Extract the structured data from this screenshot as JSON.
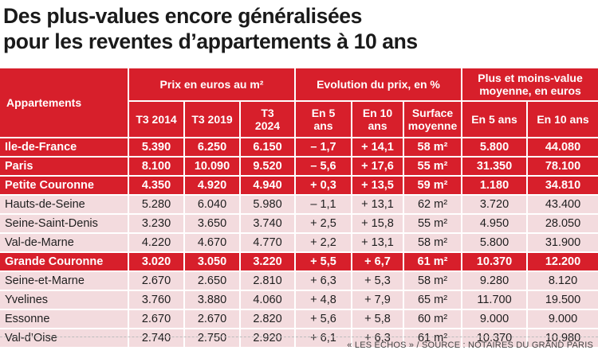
{
  "title": {
    "line1": "Des plus-values encore généralisées",
    "line2": "pour les reventes d’appartements à 10 ans"
  },
  "header": {
    "appartements": "Appartements",
    "group_prix": "Prix en euros au m²",
    "group_evolution": "Evolution du prix, en %",
    "group_plusvalue": "Plus et moins-value moyenne, en euros",
    "cols": [
      "T3 2014",
      "T3 2019",
      "T3 2024",
      "En 5 ans",
      "En 10 ans",
      "Surface moyenne",
      "En 5 ans",
      "En 10 ans"
    ]
  },
  "chart_data": {
    "type": "table",
    "title": "Des plus-values encore généralisées pour les reventes d’appartements à 10 ans",
    "columns": [
      "Appartements",
      "T3 2014",
      "T3 2019",
      "T3 2024",
      "En 5 ans",
      "En 10 ans",
      "Surface moyenne",
      "En 5 ans",
      "En 10 ans"
    ],
    "rows": [
      {
        "name": "Ile-de-France",
        "level": "major",
        "values": [
          "5.390",
          "6.250",
          "6.150",
          "– 1,7",
          "+ 14,1",
          "58 m²",
          "5.800",
          "44.080"
        ]
      },
      {
        "name": "Paris",
        "level": "major",
        "values": [
          "8.100",
          "10.090",
          "9.520",
          "– 5,6",
          "+ 17,6",
          "55 m²",
          "31.350",
          "78.100"
        ]
      },
      {
        "name": "Petite Couronne",
        "level": "major",
        "values": [
          "4.350",
          "4.920",
          "4.940",
          "+ 0,3",
          "+ 13,5",
          "59 m²",
          "1.180",
          "34.810"
        ]
      },
      {
        "name": "Hauts-de-Seine",
        "level": "minor",
        "values": [
          "5.280",
          "6.040",
          "5.980",
          "– 1,1",
          "+ 13,1",
          "62 m²",
          "3.720",
          "43.400"
        ]
      },
      {
        "name": "Seine-Saint-Denis",
        "level": "minor",
        "values": [
          "3.230",
          "3.650",
          "3.740",
          "+ 2,5",
          "+ 15,8",
          "55 m²",
          "4.950",
          "28.050"
        ]
      },
      {
        "name": "Val-de-Marne",
        "level": "minor",
        "values": [
          "4.220",
          "4.670",
          "4.770",
          "+ 2,2",
          "+ 13,1",
          "58 m²",
          "5.800",
          "31.900"
        ]
      },
      {
        "name": "Grande Couronne",
        "level": "major",
        "values": [
          "3.020",
          "3.050",
          "3.220",
          "+ 5,5",
          "+ 6,7",
          "61 m²",
          "10.370",
          "12.200"
        ]
      },
      {
        "name": "Seine-et-Marne",
        "level": "minor",
        "values": [
          "2.670",
          "2.650",
          "2.810",
          "+ 6,3",
          "+ 5,3",
          "58 m²",
          "9.280",
          "8.120"
        ]
      },
      {
        "name": "Yvelines",
        "level": "minor",
        "values": [
          "3.760",
          "3.880",
          "4.060",
          "+ 4,8",
          "+ 7,9",
          "65 m²",
          "11.700",
          "19.500"
        ]
      },
      {
        "name": "Essonne",
        "level": "minor",
        "values": [
          "2.670",
          "2.670",
          "2.820",
          "+ 5,6",
          "+ 5,8",
          "60 m²",
          "9.000",
          "9.000"
        ]
      },
      {
        "name": "Val-d’Oise",
        "level": "minor",
        "values": [
          "2.740",
          "2.750",
          "2.920",
          "+ 6,1",
          "+ 6,3",
          "61 m²",
          "10.370",
          "10.980"
        ]
      }
    ]
  },
  "source": "« LES ÉCHOS » / SOURCE : NOTAIRES DU GRAND PARIS",
  "colors": {
    "accent": "#d71f2b",
    "minor_row": "#f3dbde"
  }
}
